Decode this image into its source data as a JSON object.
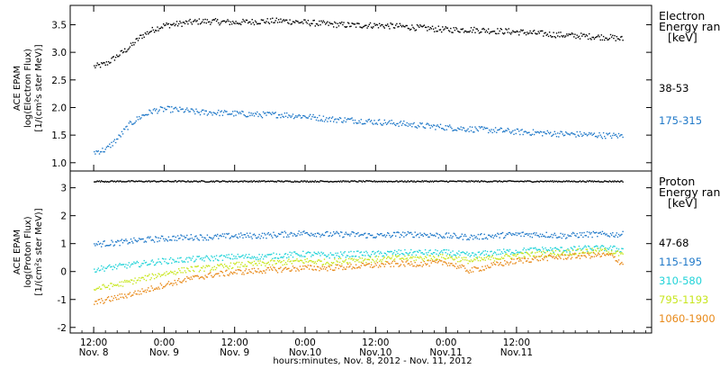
{
  "chart_data": [
    {
      "type": "scatter",
      "panel": "electron",
      "ylabel": [
        "ACE EPAM",
        "log(Electron Flux)",
        "[1/(cm²s ster MeV)]"
      ],
      "ylim": [
        0.85,
        3.85
      ],
      "yticks": [
        1.0,
        1.5,
        2.0,
        2.5,
        3.0,
        3.5
      ],
      "ytick_labels": [
        "1.0",
        "1.5",
        "2.0",
        "2.5",
        "3.0",
        "3.5"
      ],
      "legend": {
        "title": [
          "Electron",
          "Energy ranges",
          "[keV]"
        ],
        "entries": [
          {
            "label": "38-53",
            "color": "#000000"
          },
          {
            "label": "175-315",
            "color": "#1f78c8"
          }
        ]
      },
      "series": [
        {
          "name": "38-53",
          "color": "#000000",
          "x": [
            0,
            2,
            4,
            6,
            8,
            10,
            12,
            14,
            16,
            18,
            20,
            24,
            28,
            32,
            36,
            40,
            44,
            48,
            52,
            56,
            60,
            64,
            68,
            72,
            76,
            80,
            84,
            88,
            90
          ],
          "y": [
            2.75,
            2.8,
            2.95,
            3.1,
            3.3,
            3.42,
            3.5,
            3.52,
            3.55,
            3.57,
            3.57,
            3.55,
            3.57,
            3.58,
            3.55,
            3.52,
            3.5,
            3.5,
            3.48,
            3.45,
            3.42,
            3.42,
            3.4,
            3.38,
            3.35,
            3.32,
            3.3,
            3.28,
            3.25
          ]
        },
        {
          "name": "175-315",
          "color": "#1f78c8",
          "x": [
            0,
            2,
            4,
            6,
            8,
            10,
            12,
            14,
            16,
            18,
            20,
            24,
            28,
            32,
            36,
            40,
            44,
            48,
            52,
            56,
            60,
            64,
            68,
            72,
            76,
            80,
            84,
            88,
            90
          ],
          "y": [
            1.2,
            1.25,
            1.45,
            1.7,
            1.85,
            1.95,
            1.98,
            1.97,
            1.95,
            1.92,
            1.92,
            1.9,
            1.88,
            1.88,
            1.85,
            1.8,
            1.78,
            1.75,
            1.72,
            1.68,
            1.65,
            1.62,
            1.6,
            1.57,
            1.55,
            1.53,
            1.52,
            1.5,
            1.5
          ]
        }
      ]
    },
    {
      "type": "scatter",
      "panel": "proton",
      "ylabel": [
        "ACE EPAM",
        "log(Proton Flux)",
        "[1/(cm²s ster MeV)]"
      ],
      "ylim": [
        -2.2,
        3.6
      ],
      "yticks": [
        -2,
        -1,
        0,
        1,
        2,
        3
      ],
      "ytick_labels": [
        "-2",
        "-1",
        "0",
        "1",
        "2",
        "3"
      ],
      "legend": {
        "title": [
          "Proton",
          "Energy ranges",
          "[keV]"
        ],
        "entries": [
          {
            "label": "47-68",
            "color": "#000000"
          },
          {
            "label": "115-195",
            "color": "#1f78c8"
          },
          {
            "label": "310-580",
            "color": "#22d3d8"
          },
          {
            "label": "795-1193",
            "color": "#c8e61e"
          },
          {
            "label": "1060-1900",
            "color": "#e88a1a"
          }
        ]
      },
      "series": [
        {
          "name": "47-68",
          "color": "#000000",
          "x": [
            0,
            10,
            20,
            30,
            40,
            50,
            60,
            70,
            80,
            90
          ],
          "y": [
            3.25,
            3.25,
            3.25,
            3.25,
            3.25,
            3.25,
            3.25,
            3.25,
            3.25,
            3.25
          ]
        },
        {
          "name": "115-195",
          "color": "#1f78c8",
          "x": [
            0,
            4,
            8,
            12,
            16,
            20,
            24,
            28,
            32,
            36,
            40,
            44,
            48,
            52,
            56,
            60,
            64,
            68,
            72,
            76,
            80,
            84,
            88,
            90
          ],
          "y": [
            1.0,
            1.05,
            1.15,
            1.2,
            1.25,
            1.25,
            1.3,
            1.3,
            1.35,
            1.4,
            1.35,
            1.35,
            1.3,
            1.35,
            1.35,
            1.3,
            1.25,
            1.3,
            1.35,
            1.35,
            1.3,
            1.35,
            1.35,
            1.35
          ]
        },
        {
          "name": "310-580",
          "color": "#22d3d8",
          "x": [
            0,
            4,
            8,
            12,
            16,
            20,
            24,
            28,
            32,
            36,
            40,
            44,
            48,
            52,
            56,
            60,
            64,
            68,
            72,
            76,
            80,
            84,
            88,
            90
          ],
          "y": [
            0.1,
            0.2,
            0.3,
            0.4,
            0.45,
            0.5,
            0.55,
            0.55,
            0.6,
            0.65,
            0.6,
            0.65,
            0.65,
            0.7,
            0.7,
            0.7,
            0.6,
            0.7,
            0.75,
            0.8,
            0.8,
            0.85,
            0.85,
            0.8
          ]
        },
        {
          "name": "795-1193",
          "color": "#c8e61e",
          "x": [
            0,
            4,
            8,
            12,
            16,
            20,
            24,
            28,
            32,
            36,
            40,
            44,
            48,
            52,
            56,
            60,
            64,
            68,
            72,
            76,
            80,
            84,
            88,
            90
          ],
          "y": [
            -0.6,
            -0.45,
            -0.25,
            -0.05,
            0.1,
            0.15,
            0.25,
            0.3,
            0.35,
            0.4,
            0.35,
            0.45,
            0.45,
            0.5,
            0.5,
            0.55,
            0.4,
            0.5,
            0.6,
            0.65,
            0.7,
            0.75,
            0.75,
            0.6
          ]
        },
        {
          "name": "1060-1900",
          "color": "#e88a1a",
          "x": [
            0,
            4,
            8,
            12,
            16,
            20,
            24,
            28,
            32,
            36,
            40,
            44,
            48,
            52,
            56,
            60,
            64,
            68,
            72,
            76,
            80,
            84,
            88,
            90
          ],
          "y": [
            -1.1,
            -0.9,
            -0.7,
            -0.45,
            -0.25,
            -0.1,
            0.0,
            0.05,
            0.1,
            0.15,
            0.15,
            0.2,
            0.25,
            0.3,
            0.3,
            0.35,
            0.05,
            0.25,
            0.4,
            0.5,
            0.55,
            0.6,
            0.6,
            0.3
          ]
        }
      ]
    }
  ],
  "xaxis": {
    "xlim": [
      -4,
      95
    ],
    "ticks": [
      {
        "x": 0,
        "line1": "12:00",
        "line2": "Nov. 8"
      },
      {
        "x": 12,
        "line1": "0:00",
        "line2": "Nov. 9"
      },
      {
        "x": 24,
        "line1": "12:00",
        "line2": "Nov. 9"
      },
      {
        "x": 36,
        "line1": "0:00",
        "line2": "Nov.10"
      },
      {
        "x": 48,
        "line1": "12:00",
        "line2": "Nov.10"
      },
      {
        "x": 60,
        "line1": "0:00",
        "line2": "Nov.11"
      },
      {
        "x": 72,
        "line1": "12:00",
        "line2": "Nov.11"
      }
    ],
    "label": "hours:minutes,  Nov.  8, 2012 - Nov. 11, 2012"
  }
}
